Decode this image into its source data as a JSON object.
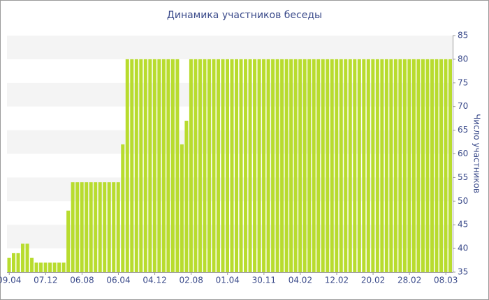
{
  "chart_data": {
    "type": "bar",
    "title": "Динамика участников беседы",
    "y_label": "Число участников",
    "categories": [
      "09.04",
      null,
      null,
      null,
      null,
      null,
      null,
      null,
      "07.12",
      null,
      null,
      null,
      null,
      null,
      null,
      null,
      "06.08",
      null,
      null,
      null,
      null,
      null,
      null,
      null,
      "06.04",
      null,
      null,
      null,
      null,
      null,
      null,
      null,
      "04.12",
      null,
      null,
      null,
      null,
      null,
      null,
      null,
      "02.08",
      null,
      null,
      null,
      null,
      null,
      null,
      null,
      "01.04",
      null,
      null,
      null,
      null,
      null,
      null,
      null,
      "30.11",
      null,
      null,
      null,
      null,
      null,
      null,
      null,
      "04.02",
      null,
      null,
      null,
      null,
      null,
      null,
      null,
      "12.02",
      null,
      null,
      null,
      null,
      null,
      null,
      null,
      "20.02",
      null,
      null,
      null,
      null,
      null,
      null,
      null,
      "28.02",
      null,
      null,
      null,
      null,
      null,
      null,
      null,
      "08.03",
      null
    ],
    "values": [
      38,
      39,
      39,
      41,
      41,
      38,
      37,
      37,
      37,
      37,
      37,
      37,
      37,
      48,
      54,
      54,
      54,
      54,
      54,
      54,
      54,
      54,
      54,
      54,
      54,
      62,
      80,
      80,
      80,
      80,
      80,
      80,
      80,
      80,
      80,
      80,
      80,
      80,
      62,
      67,
      80,
      80,
      80,
      80,
      80,
      80,
      80,
      80,
      80,
      80,
      80,
      80,
      80,
      80,
      80,
      80,
      80,
      80,
      80,
      80,
      80,
      80,
      80,
      80,
      80,
      80,
      80,
      80,
      80,
      80,
      80,
      80,
      80,
      80,
      80,
      80,
      80,
      80,
      80,
      80,
      80,
      80,
      80,
      80,
      80,
      80,
      80,
      80,
      80,
      80,
      80,
      80,
      80,
      80,
      80,
      80,
      80,
      80
    ],
    "color": "#b8dc2e",
    "ylim": [
      35,
      85
    ],
    "yticks": [
      35,
      40,
      45,
      50,
      55,
      60,
      65,
      70,
      75,
      80,
      85
    ],
    "grid": true
  }
}
